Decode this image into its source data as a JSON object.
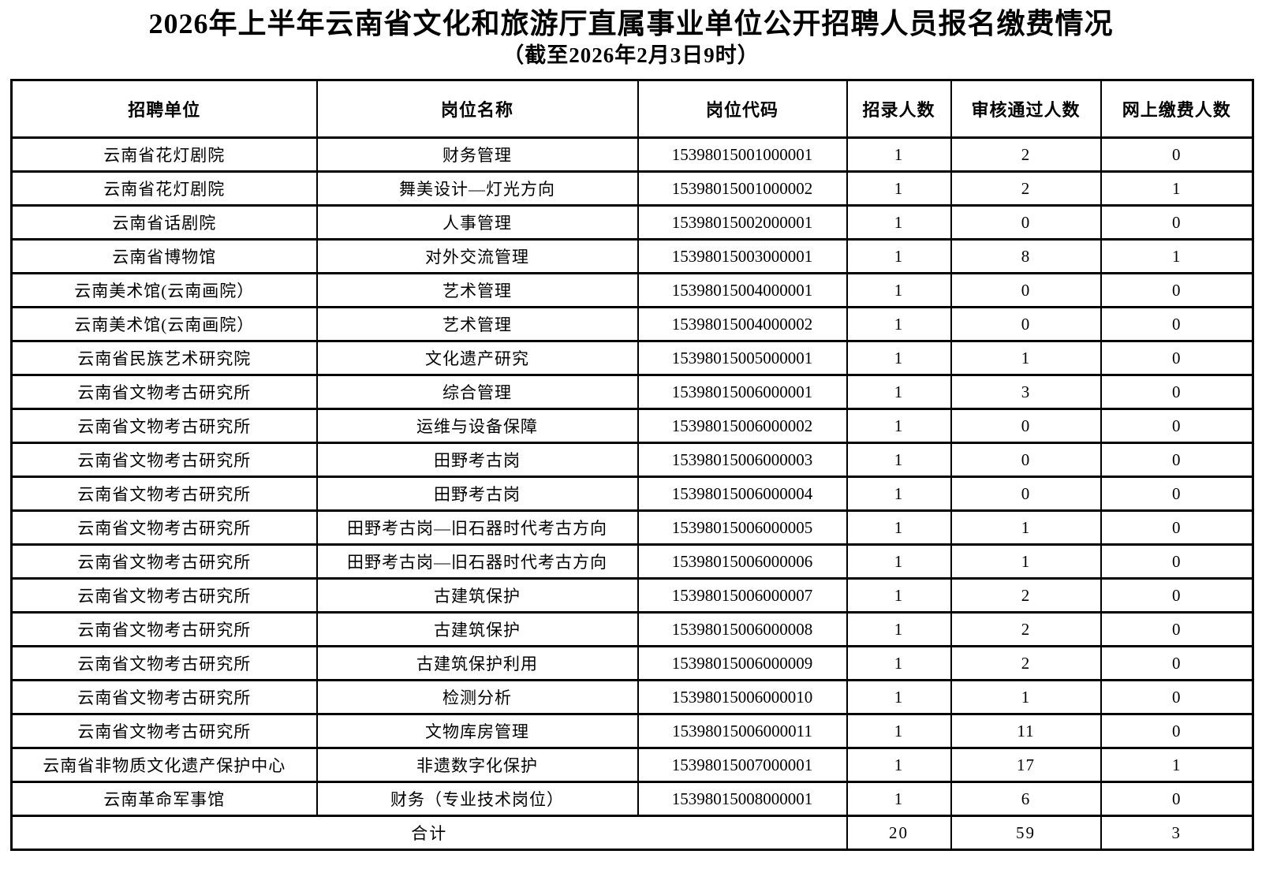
{
  "page": {
    "title": "2026年上半年云南省文化和旅游厅直属事业单位公开招聘人员报名缴费情况",
    "subtitle": "（截至2026年2月3日9时）"
  },
  "table": {
    "columns": [
      "招聘单位",
      "岗位名称",
      "岗位代码",
      "招录人数",
      "审核通过人数",
      "网上缴费人数"
    ],
    "rows": [
      {
        "unit": "云南省花灯剧院",
        "position": "财务管理",
        "code": "15398015001000001",
        "recruit": "1",
        "approved": "2",
        "paid": "0"
      },
      {
        "unit": "云南省花灯剧院",
        "position": "舞美设计—灯光方向",
        "code": "15398015001000002",
        "recruit": "1",
        "approved": "2",
        "paid": "1"
      },
      {
        "unit": "云南省话剧院",
        "position": "人事管理",
        "code": "15398015002000001",
        "recruit": "1",
        "approved": "0",
        "paid": "0"
      },
      {
        "unit": "云南省博物馆",
        "position": "对外交流管理",
        "code": "15398015003000001",
        "recruit": "1",
        "approved": "8",
        "paid": "1"
      },
      {
        "unit": "云南美术馆(云南画院）",
        "position": "艺术管理",
        "code": "15398015004000001",
        "recruit": "1",
        "approved": "0",
        "paid": "0"
      },
      {
        "unit": "云南美术馆(云南画院）",
        "position": "艺术管理",
        "code": "15398015004000002",
        "recruit": "1",
        "approved": "0",
        "paid": "0"
      },
      {
        "unit": "云南省民族艺术研究院",
        "position": "文化遗产研究",
        "code": "15398015005000001",
        "recruit": "1",
        "approved": "1",
        "paid": "0"
      },
      {
        "unit": "云南省文物考古研究所",
        "position": "综合管理",
        "code": "15398015006000001",
        "recruit": "1",
        "approved": "3",
        "paid": "0"
      },
      {
        "unit": "云南省文物考古研究所",
        "position": "运维与设备保障",
        "code": "15398015006000002",
        "recruit": "1",
        "approved": "0",
        "paid": "0"
      },
      {
        "unit": "云南省文物考古研究所",
        "position": "田野考古岗",
        "code": "15398015006000003",
        "recruit": "1",
        "approved": "0",
        "paid": "0"
      },
      {
        "unit": "云南省文物考古研究所",
        "position": "田野考古岗",
        "code": "15398015006000004",
        "recruit": "1",
        "approved": "0",
        "paid": "0"
      },
      {
        "unit": "云南省文物考古研究所",
        "position": "田野考古岗—旧石器时代考古方向",
        "code": "15398015006000005",
        "recruit": "1",
        "approved": "1",
        "paid": "0"
      },
      {
        "unit": "云南省文物考古研究所",
        "position": "田野考古岗—旧石器时代考古方向",
        "code": "15398015006000006",
        "recruit": "1",
        "approved": "1",
        "paid": "0"
      },
      {
        "unit": "云南省文物考古研究所",
        "position": "古建筑保护",
        "code": "15398015006000007",
        "recruit": "1",
        "approved": "2",
        "paid": "0"
      },
      {
        "unit": "云南省文物考古研究所",
        "position": "古建筑保护",
        "code": "15398015006000008",
        "recruit": "1",
        "approved": "2",
        "paid": "0"
      },
      {
        "unit": "云南省文物考古研究所",
        "position": "古建筑保护利用",
        "code": "15398015006000009",
        "recruit": "1",
        "approved": "2",
        "paid": "0"
      },
      {
        "unit": "云南省文物考古研究所",
        "position": "检测分析",
        "code": "15398015006000010",
        "recruit": "1",
        "approved": "1",
        "paid": "0"
      },
      {
        "unit": "云南省文物考古研究所",
        "position": "文物库房管理",
        "code": "15398015006000011",
        "recruit": "1",
        "approved": "11",
        "paid": "0"
      },
      {
        "unit": "云南省非物质文化遗产保护中心",
        "position": "非遗数字化保护",
        "code": "15398015007000001",
        "recruit": "1",
        "approved": "17",
        "paid": "1"
      },
      {
        "unit": "云南革命军事馆",
        "position": "财务（专业技术岗位）",
        "code": "15398015008000001",
        "recruit": "1",
        "approved": "6",
        "paid": "0"
      }
    ],
    "total": {
      "label": "合计",
      "recruit": "20",
      "approved": "59",
      "paid": "3"
    }
  }
}
